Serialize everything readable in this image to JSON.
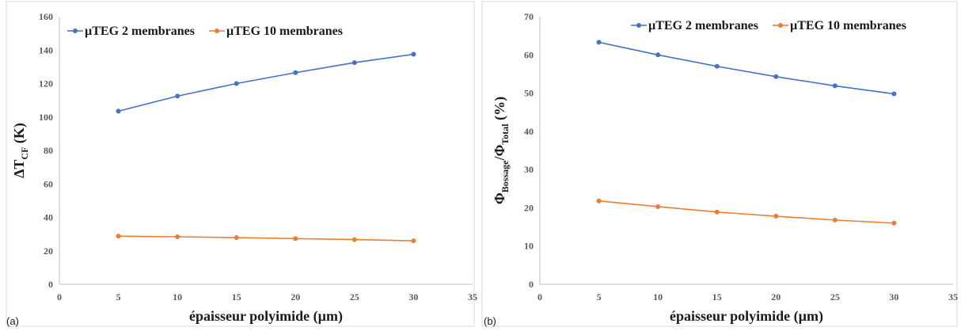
{
  "chart_data": [
    {
      "type": "line",
      "panel_label": "(a)",
      "xlabel": "épaisseur polyimide (µm)",
      "ylabel_main": "ΔT",
      "ylabel_sub": "CF",
      "ylabel_unit": " (K)",
      "xlim": [
        0,
        35
      ],
      "ylim": [
        0,
        160
      ],
      "xticks": [
        "0",
        "5",
        "10",
        "15",
        "20",
        "25",
        "30",
        "35"
      ],
      "yticks": [
        "0",
        "20",
        "40",
        "60",
        "80",
        "100",
        "120",
        "140",
        "160"
      ],
      "x": [
        5,
        10,
        15,
        20,
        25,
        30
      ],
      "series": [
        {
          "name": "µTEG 2 membranes",
          "color": "#4472c4",
          "values": [
            103.5,
            112.5,
            120,
            126.5,
            132.5,
            137.5
          ]
        },
        {
          "name": "µTEG 10 membranes",
          "color": "#ed7d31",
          "values": [
            28.8,
            28.4,
            27.9,
            27.3,
            26.7,
            26
          ]
        }
      ],
      "legend": "top-left",
      "grid": false
    },
    {
      "type": "line",
      "panel_label": "(b)",
      "xlabel": "épaisseur polyimide (µm)",
      "ylabel_main": "Φ",
      "ylabel_sub": "Bossage",
      "ylabel_mid": "/Φ",
      "ylabel_sub2": "Total",
      "ylabel_unit": " (%)",
      "xlim": [
        0,
        35
      ],
      "ylim": [
        0,
        70
      ],
      "xticks": [
        "0",
        "5",
        "10",
        "15",
        "20",
        "25",
        "30",
        "35"
      ],
      "yticks": [
        "0",
        "10",
        "20",
        "30",
        "40",
        "50",
        "60",
        "70"
      ],
      "x": [
        5,
        10,
        15,
        20,
        25,
        30
      ],
      "series": [
        {
          "name": "µTEG 2 membranes",
          "color": "#4472c4",
          "values": [
            63.3,
            60,
            57,
            54.3,
            51.9,
            49.8
          ]
        },
        {
          "name": "µTEG 10 membranes",
          "color": "#ed7d31",
          "values": [
            21.8,
            20.3,
            18.9,
            17.8,
            16.8,
            16
          ]
        }
      ],
      "legend": "top-right",
      "grid": false
    }
  ]
}
